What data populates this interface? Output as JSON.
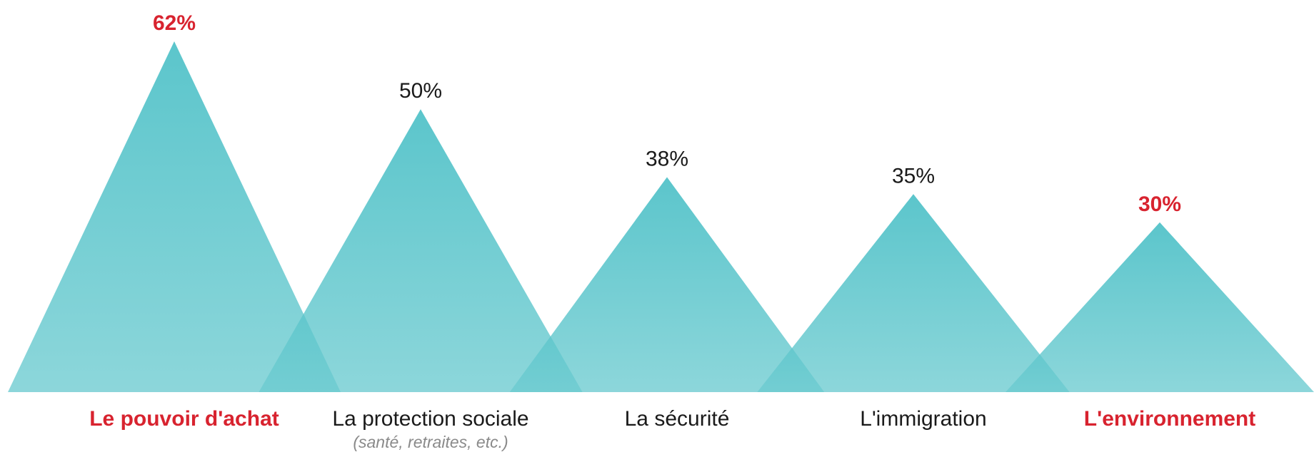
{
  "chart_data": {
    "type": "bar",
    "categories": [
      "Le pouvoir d'achat",
      "La protection sociale",
      "La sécurité",
      "L'immigration",
      "L'environnement"
    ],
    "category_notes": [
      "",
      "(santé, retraites, etc.)",
      "",
      "",
      ""
    ],
    "values": [
      62,
      50,
      38,
      35,
      30
    ],
    "value_labels": [
      "62%",
      "50%",
      "38%",
      "35%",
      "30%"
    ],
    "highlighted": [
      true,
      false,
      false,
      false,
      true
    ],
    "unit": "%",
    "ylim": [
      0,
      62
    ],
    "grid": false,
    "legend": "none",
    "colors": {
      "triangle_top": "#2db5bd",
      "triangle_bottom": "#6ccbd0",
      "highlight_text": "#d8232f",
      "normal_text": "#1a1a1a",
      "note_text": "#8a8a8a"
    }
  }
}
